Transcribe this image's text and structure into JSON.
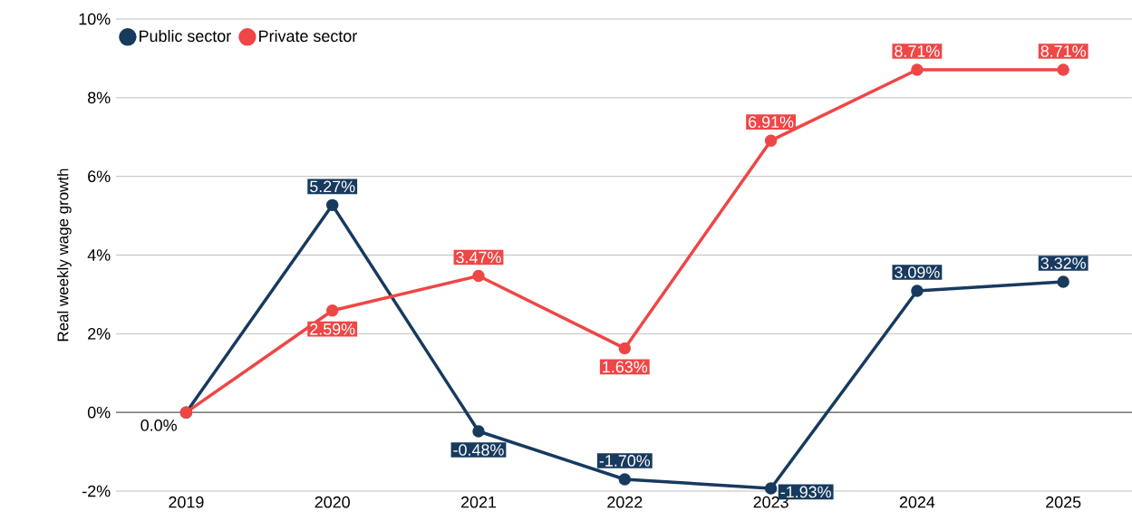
{
  "chart_data": {
    "type": "line",
    "ylabel": "Real weekly wage growth",
    "categories": [
      "2019",
      "2020",
      "2021",
      "2022",
      "2023",
      "2024",
      "2025"
    ],
    "series": [
      {
        "name": "Public sector",
        "color": "#173a5e",
        "values": [
          0,
          5.27,
          -0.48,
          -1.7,
          -1.93,
          3.09,
          3.32
        ],
        "value_labels": [
          null,
          "5.27%",
          "-0.48%",
          "-1.70%",
          "-1.93%",
          "3.09%",
          "3.32%"
        ]
      },
      {
        "name": "Private sector",
        "color": "#ef4646",
        "values": [
          0,
          2.59,
          3.47,
          1.63,
          6.91,
          8.71,
          8.71
        ],
        "value_labels": [
          null,
          "2.59%",
          "3.47%",
          "1.63%",
          "6.91%",
          "8.71%",
          "8.71%"
        ]
      }
    ],
    "annotations": [
      {
        "text": "0.0%",
        "x": "2019",
        "y": 0
      }
    ],
    "ylim": [
      -2,
      10
    ],
    "yticks": [
      {
        "value": -2,
        "label": "-2%"
      },
      {
        "value": 0,
        "label": "0%"
      },
      {
        "value": 2,
        "label": "2%"
      },
      {
        "value": 4,
        "label": "4%"
      },
      {
        "value": 6,
        "label": "6%"
      },
      {
        "value": 8,
        "label": "8%"
      },
      {
        "value": 10,
        "label": "10%"
      }
    ],
    "grid": "y",
    "legend": "top left",
    "marker": "circle",
    "line_style": "solid"
  }
}
